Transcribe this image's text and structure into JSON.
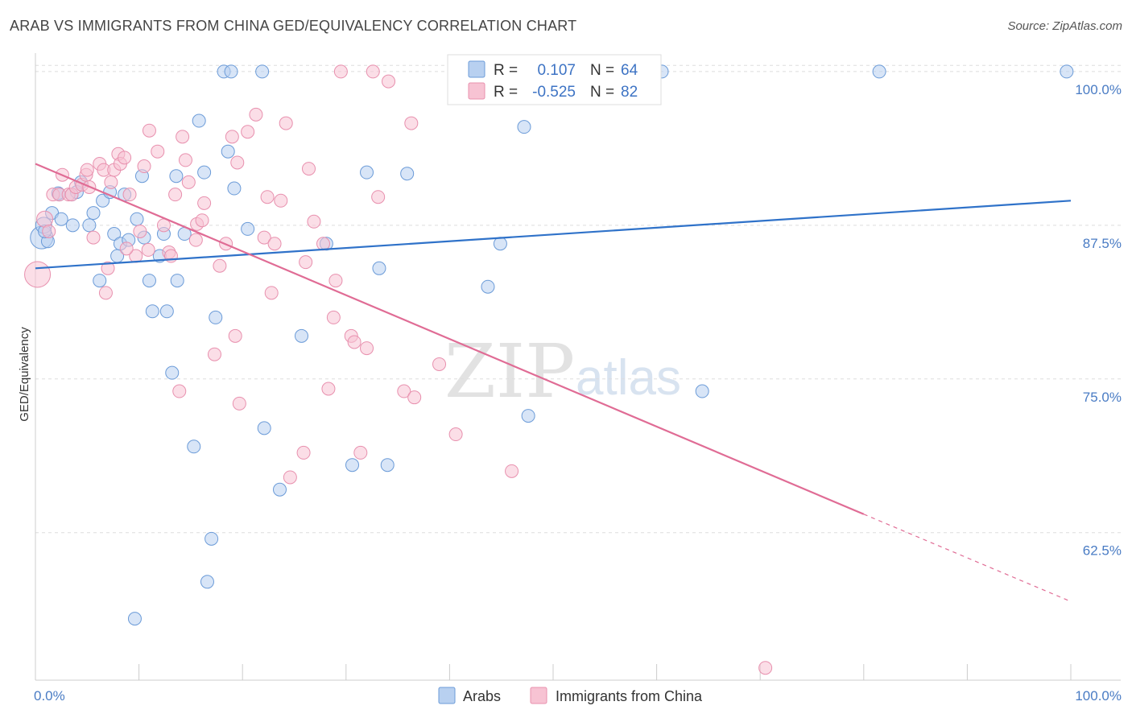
{
  "title": "ARAB VS IMMIGRANTS FROM CHINA GED/EQUIVALENCY CORRELATION CHART",
  "source": "Source: ZipAtlas.com",
  "watermark": {
    "zip": "ZIP",
    "atlas": "atlas"
  },
  "colors": {
    "arabs_fill": "#b8d0f0",
    "arabs_stroke": "#6b9bd8",
    "arabs_line": "#2f72c9",
    "china_fill": "#f7c3d3",
    "china_stroke": "#e890ae",
    "china_line": "#e06c95",
    "grid": "#dddddd",
    "tick_text": "#4a7cc4"
  },
  "legend": {
    "rows": [
      {
        "r_label": "R =",
        "r_value": "0.107",
        "n_label": "N =",
        "n_value": "64"
      },
      {
        "r_label": "R =",
        "r_value": "-0.525",
        "n_label": "N =",
        "n_value": "82"
      }
    ]
  },
  "bottom_legend": [
    "Arabs",
    "Immigrants from China"
  ],
  "chart_data": {
    "type": "scatter",
    "title": "ARAB VS IMMIGRANTS FROM CHINA GED/EQUIVALENCY CORRELATION CHART",
    "xlabel": "",
    "ylabel": "GED/Equivalency",
    "xlim": [
      0,
      100
    ],
    "ylim": [
      50.5,
      101.5
    ],
    "x_tick_labels": [
      "0.0%",
      "100.0%"
    ],
    "y_ticks": [
      62.5,
      75.0,
      87.5,
      100.0
    ],
    "y_tick_labels": [
      "62.5%",
      "75.0%",
      "87.5%",
      "100.0%"
    ],
    "grid": true,
    "legend_position": "top-center",
    "series": [
      {
        "name": "Arabs",
        "r": 0.107,
        "n": 64,
        "trend": {
          "x": [
            0,
            100
          ],
          "y": [
            84.0,
            89.5
          ]
        },
        "points": [
          [
            0.6,
            86.5,
            14
          ],
          [
            0.8,
            87.5,
            10
          ],
          [
            1.2,
            86.2,
            8
          ],
          [
            1.6,
            88.5,
            8
          ],
          [
            2.3,
            90.0,
            8
          ],
          [
            2.5,
            88.0,
            8
          ],
          [
            3.5,
            90.0,
            8
          ],
          [
            3.6,
            87.5,
            8
          ],
          [
            4.4,
            91.0,
            8
          ],
          [
            5.2,
            87.5,
            8
          ],
          [
            5.6,
            88.5,
            8
          ],
          [
            6.2,
            83.0,
            8
          ],
          [
            6.5,
            89.5,
            8
          ],
          [
            7.2,
            90.2,
            8
          ],
          [
            7.6,
            86.8,
            8
          ],
          [
            7.9,
            85.0,
            8
          ],
          [
            8.2,
            86.0,
            8
          ],
          [
            8.6,
            90.0,
            8
          ],
          [
            9.0,
            86.3,
            8
          ],
          [
            9.6,
            55.5,
            8
          ],
          [
            9.8,
            88.0,
            8
          ],
          [
            10.3,
            91.5,
            8
          ],
          [
            10.5,
            86.5,
            8
          ],
          [
            11.0,
            83.0,
            8
          ],
          [
            11.3,
            80.5,
            8
          ],
          [
            12.0,
            85.0,
            8
          ],
          [
            12.4,
            86.8,
            8
          ],
          [
            12.7,
            80.5,
            8
          ],
          [
            13.2,
            75.5,
            8
          ],
          [
            13.6,
            91.5,
            8
          ],
          [
            13.7,
            83.0,
            8
          ],
          [
            14.4,
            86.8,
            8
          ],
          [
            15.3,
            69.5,
            8
          ],
          [
            15.8,
            96.0,
            8
          ],
          [
            16.3,
            91.8,
            8
          ],
          [
            16.6,
            58.5,
            8
          ],
          [
            17.0,
            62.0,
            8
          ],
          [
            17.4,
            80.0,
            8
          ],
          [
            18.2,
            100.0,
            8
          ],
          [
            18.6,
            93.5,
            8
          ],
          [
            18.9,
            100.0,
            8
          ],
          [
            19.2,
            90.5,
            8
          ],
          [
            20.5,
            87.2,
            8
          ],
          [
            21.9,
            100.0,
            8
          ],
          [
            22.1,
            71.0,
            8
          ],
          [
            23.6,
            66.0,
            8
          ],
          [
            25.7,
            78.5,
            8
          ],
          [
            28.1,
            86.0,
            8
          ],
          [
            30.6,
            68.0,
            8
          ],
          [
            32.0,
            91.8,
            8
          ],
          [
            33.2,
            84.0,
            8
          ],
          [
            34.0,
            68.0,
            8
          ],
          [
            35.9,
            91.7,
            8
          ],
          [
            43.7,
            82.5,
            8
          ],
          [
            44.9,
            86.0,
            8
          ],
          [
            47.2,
            95.5,
            8
          ],
          [
            47.6,
            72.0,
            8
          ],
          [
            60.5,
            100.0,
            8
          ],
          [
            64.4,
            74.0,
            8
          ],
          [
            81.5,
            100.0,
            8
          ],
          [
            99.6,
            100.0,
            8
          ],
          [
            0.9,
            87.0,
            8
          ],
          [
            4.0,
            90.2,
            8
          ],
          [
            2.2,
            90.1,
            8
          ]
        ]
      },
      {
        "name": "Immigrants from China",
        "r": -0.525,
        "n": 82,
        "trend": {
          "x": [
            0,
            80
          ],
          "y": [
            92.5,
            64.0
          ],
          "dashed_to": [
            100,
            56.9
          ]
        },
        "points": [
          [
            0.2,
            83.5,
            16
          ],
          [
            0.9,
            88.0,
            10
          ],
          [
            1.3,
            87.0,
            8
          ],
          [
            1.7,
            90.0,
            8
          ],
          [
            2.3,
            90.0,
            8
          ],
          [
            2.6,
            91.6,
            8
          ],
          [
            3.2,
            90.0,
            8
          ],
          [
            3.5,
            90.0,
            8
          ],
          [
            3.9,
            90.6,
            8
          ],
          [
            4.5,
            90.8,
            8
          ],
          [
            4.9,
            91.6,
            8
          ],
          [
            5.2,
            90.6,
            8
          ],
          [
            5.6,
            86.5,
            8
          ],
          [
            6.2,
            92.5,
            8
          ],
          [
            6.6,
            92.0,
            8
          ],
          [
            6.8,
            82.0,
            8
          ],
          [
            7.0,
            84.0,
            8
          ],
          [
            7.3,
            91.0,
            8
          ],
          [
            7.6,
            92.0,
            8
          ],
          [
            8.0,
            93.3,
            8
          ],
          [
            8.2,
            92.5,
            8
          ],
          [
            8.6,
            93.0,
            8
          ],
          [
            9.1,
            90.0,
            8
          ],
          [
            9.7,
            85.0,
            8
          ],
          [
            10.1,
            87.0,
            8
          ],
          [
            10.5,
            92.3,
            8
          ],
          [
            10.9,
            85.5,
            8
          ],
          [
            11.0,
            95.2,
            8
          ],
          [
            11.8,
            93.5,
            8
          ],
          [
            12.4,
            87.5,
            8
          ],
          [
            12.9,
            85.3,
            8
          ],
          [
            13.1,
            85.0,
            8
          ],
          [
            13.5,
            90.0,
            8
          ],
          [
            13.9,
            74.0,
            8
          ],
          [
            14.2,
            94.7,
            8
          ],
          [
            14.5,
            92.8,
            8
          ],
          [
            14.8,
            91.0,
            8
          ],
          [
            15.5,
            86.3,
            8
          ],
          [
            15.6,
            87.6,
            8
          ],
          [
            16.1,
            87.9,
            8
          ],
          [
            16.3,
            89.3,
            8
          ],
          [
            17.3,
            77.0,
            8
          ],
          [
            17.8,
            84.2,
            8
          ],
          [
            18.4,
            86.0,
            8
          ],
          [
            19.0,
            94.7,
            8
          ],
          [
            19.3,
            78.5,
            8
          ],
          [
            19.5,
            92.6,
            8
          ],
          [
            19.7,
            73.0,
            8
          ],
          [
            20.5,
            95.1,
            8
          ],
          [
            21.3,
            96.5,
            8
          ],
          [
            22.1,
            86.5,
            8
          ],
          [
            22.4,
            89.8,
            8
          ],
          [
            22.8,
            82.0,
            8
          ],
          [
            23.1,
            86.0,
            8
          ],
          [
            23.7,
            89.5,
            8
          ],
          [
            24.2,
            95.8,
            8
          ],
          [
            24.6,
            67.0,
            8
          ],
          [
            25.9,
            69.0,
            8
          ],
          [
            26.1,
            84.5,
            8
          ],
          [
            26.4,
            92.1,
            8
          ],
          [
            26.9,
            87.8,
            8
          ],
          [
            27.8,
            86.0,
            8
          ],
          [
            28.3,
            74.2,
            8
          ],
          [
            28.8,
            80.0,
            8
          ],
          [
            29.0,
            83.0,
            8
          ],
          [
            29.5,
            100.0,
            8
          ],
          [
            30.5,
            78.5,
            8
          ],
          [
            30.8,
            78.0,
            8
          ],
          [
            31.4,
            69.0,
            8
          ],
          [
            32.0,
            77.5,
            8
          ],
          [
            32.6,
            100.0,
            8
          ],
          [
            33.1,
            89.8,
            8
          ],
          [
            34.1,
            99.2,
            8
          ],
          [
            35.6,
            74.0,
            8
          ],
          [
            36.3,
            95.8,
            8
          ],
          [
            36.6,
            73.5,
            8
          ],
          [
            39.0,
            76.2,
            8
          ],
          [
            40.6,
            70.5,
            8
          ],
          [
            46.0,
            67.5,
            8
          ],
          [
            70.5,
            51.5,
            8
          ],
          [
            8.8,
            85.6,
            8
          ],
          [
            5.0,
            92.0,
            8
          ]
        ]
      }
    ]
  }
}
